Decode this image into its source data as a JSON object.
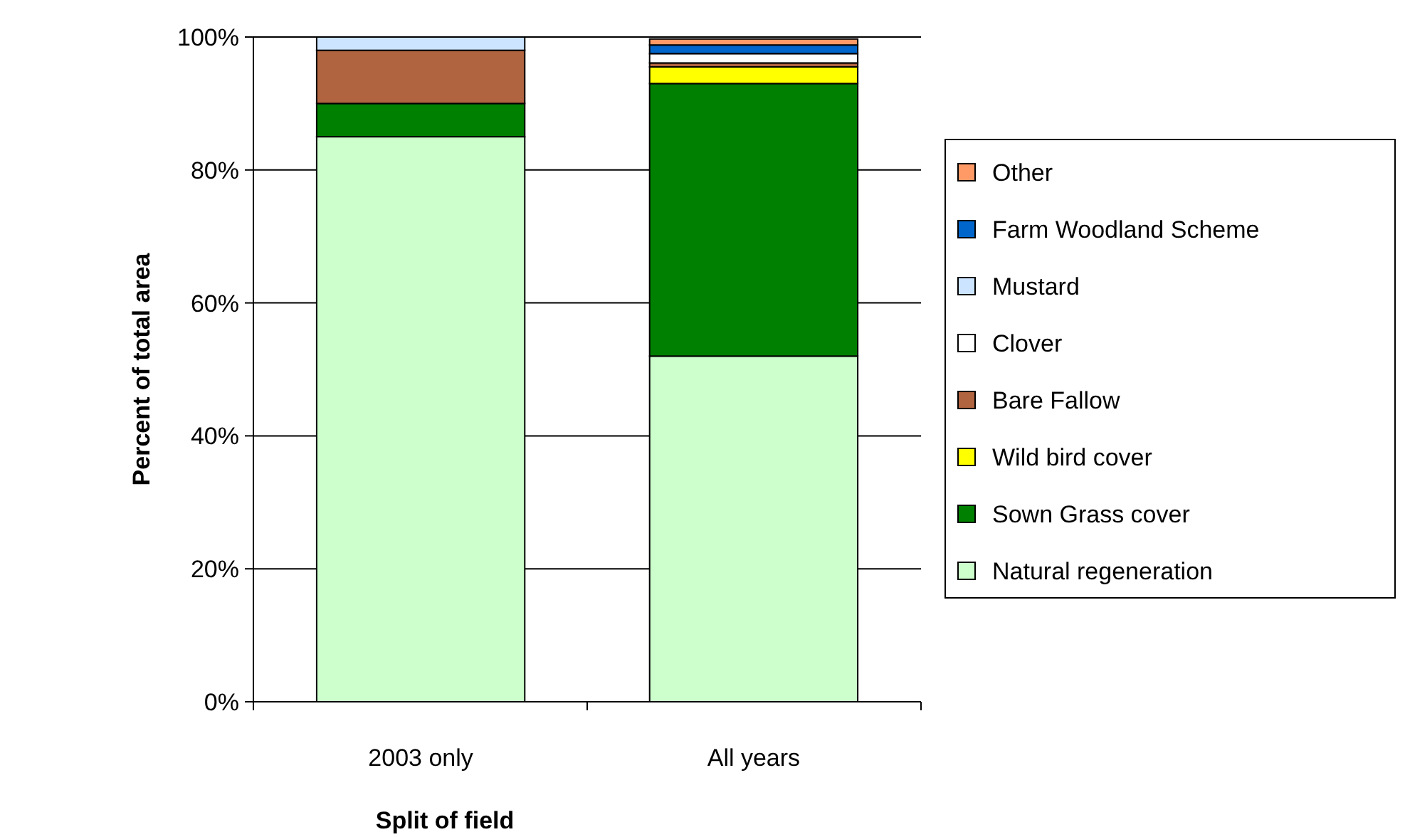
{
  "chart_data": {
    "type": "bar",
    "stacked": true,
    "xlabel": "Split of field",
    "ylabel": "Percent of total area",
    "categories": [
      "2003 only",
      "All years"
    ],
    "series": [
      {
        "name": "Natural regeneration",
        "color": "#ccffcc",
        "values": [
          85,
          52
        ]
      },
      {
        "name": "Sown Grass cover",
        "color": "#008000",
        "values": [
          5,
          41
        ]
      },
      {
        "name": "Wild bird cover",
        "color": "#ffff00",
        "values": [
          0,
          2.5
        ]
      },
      {
        "name": "Bare Fallow",
        "color": "#b06440",
        "values": [
          8,
          0.6
        ]
      },
      {
        "name": "Clover",
        "color": "#ffffff",
        "values": [
          0,
          1.4
        ]
      },
      {
        "name": "Mustard",
        "color": "#cce4ff",
        "values": [
          2,
          null
        ]
      },
      {
        "name": "Farm Woodland Scheme",
        "color": "#0066cc",
        "values": [
          0,
          1.3
        ]
      },
      {
        "name": "Other",
        "color": "#ff9966",
        "values": [
          0,
          0.9
        ]
      }
    ],
    "ylim": [
      0,
      100
    ],
    "yticks": [
      {
        "value": 0,
        "label": "0%"
      },
      {
        "value": 20,
        "label": "20%"
      },
      {
        "value": 40,
        "label": "40%"
      },
      {
        "value": 60,
        "label": "60%"
      },
      {
        "value": 80,
        "label": "80%"
      },
      {
        "value": 100,
        "label": "100%"
      }
    ],
    "grid": "y",
    "legend": "right"
  }
}
